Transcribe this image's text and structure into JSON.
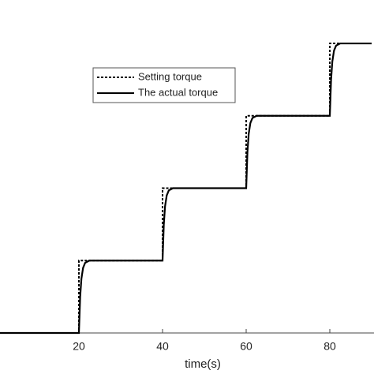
{
  "chart_data": {
    "type": "line",
    "x_label": "time(s)",
    "xlim": [
      0,
      90
    ],
    "xticks": [
      20,
      40,
      60,
      80
    ],
    "ylim": [
      0,
      4.6
    ],
    "grid": false,
    "legend": "upper left",
    "series": [
      {
        "name": "Setting torque",
        "color": "#000000",
        "style": "dotted",
        "x": [
          0,
          20,
          20,
          40,
          40,
          60,
          60,
          80,
          80,
          90
        ],
        "values": [
          0,
          0,
          1,
          1,
          2,
          2,
          3,
          3,
          4,
          4
        ]
      },
      {
        "name": "The actual torque",
        "color": "#000000",
        "style": "solid",
        "x": [
          0,
          20,
          20.3,
          20.6,
          21,
          21.5,
          22.5,
          40,
          40.3,
          40.6,
          41,
          41.5,
          42.5,
          60,
          60.3,
          60.6,
          61,
          61.5,
          62.5,
          80,
          80.3,
          80.6,
          81,
          81.5,
          82.5,
          90
        ],
        "values": [
          0,
          0,
          0.5,
          0.75,
          0.9,
          0.97,
          1,
          1,
          1.5,
          1.75,
          1.9,
          1.97,
          2,
          2,
          2.5,
          2.75,
          2.9,
          2.97,
          3,
          3,
          3.5,
          3.75,
          3.9,
          3.97,
          4,
          4
        ]
      }
    ]
  }
}
